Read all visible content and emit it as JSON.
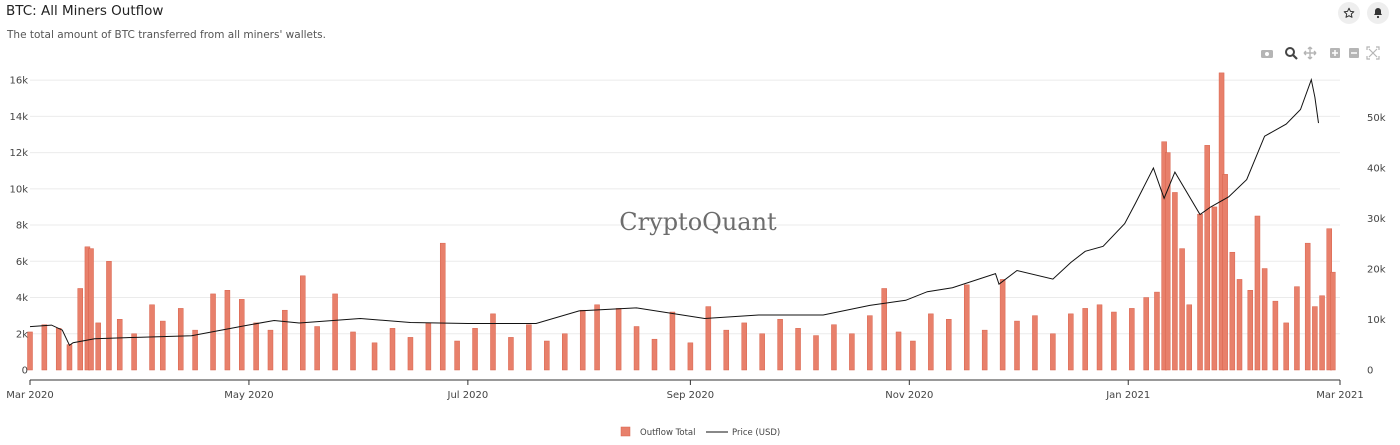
{
  "header": {
    "title": "BTC: All Miners Outflow",
    "subtitle": "The total amount of BTC transferred from all miners' wallets."
  },
  "watermark": "CryptoQuant",
  "toolbar": [
    "camera-icon",
    "zoom-icon",
    "pan-icon",
    "zoom-in-icon",
    "zoom-out-icon",
    "autoscale-icon"
  ],
  "colors": {
    "bar": "#e8806b",
    "bar_stroke": "#d8624c",
    "price_line": "#111111",
    "grid": "#ebebeb"
  },
  "chart_data": {
    "type": "bar",
    "x_range": [
      "2020-03-01",
      "2021-03-01"
    ],
    "x_ticks": [
      {
        "date": "2020-03-01",
        "label": "Mar 2020"
      },
      {
        "date": "2020-05-01",
        "label": "May 2020"
      },
      {
        "date": "2020-07-01",
        "label": "Jul 2020"
      },
      {
        "date": "2020-09-01",
        "label": "Sep 2020"
      },
      {
        "date": "2020-11-01",
        "label": "Nov 2020"
      },
      {
        "date": "2021-01-01",
        "label": "Jan 2021"
      },
      {
        "date": "2021-03-01",
        "label": "Mar 2021"
      }
    ],
    "y_left": {
      "range": [
        0,
        17000
      ],
      "ticks": [
        0,
        2000,
        4000,
        6000,
        8000,
        10000,
        12000,
        14000,
        16000
      ],
      "tick_labels": [
        "0",
        "2k",
        "4k",
        "6k",
        "8k",
        "10k",
        "12k",
        "14k",
        "16k"
      ]
    },
    "y_right": {
      "range": [
        0,
        61000
      ],
      "ticks": [
        0,
        10000,
        20000,
        30000,
        40000,
        50000
      ],
      "tick_labels": [
        "0",
        "10k",
        "20k",
        "30k",
        "40k",
        "50k"
      ]
    },
    "legend": [
      "Outflow Total",
      "Price (USD)"
    ],
    "legend_position": "bottom-center",
    "grid": true,
    "series": [
      {
        "name": "Outflow Total",
        "type": "bar",
        "axis": "left",
        "points": [
          [
            "2020-03-01",
            2100
          ],
          [
            "2020-03-05",
            2500
          ],
          [
            "2020-03-09",
            2300
          ],
          [
            "2020-03-12",
            1400
          ],
          [
            "2020-03-15",
            4500
          ],
          [
            "2020-03-17",
            6800
          ],
          [
            "2020-03-18",
            6700
          ],
          [
            "2020-03-20",
            2600
          ],
          [
            "2020-03-23",
            6000
          ],
          [
            "2020-03-26",
            2800
          ],
          [
            "2020-03-30",
            2000
          ],
          [
            "2020-04-04",
            3600
          ],
          [
            "2020-04-07",
            2700
          ],
          [
            "2020-04-12",
            3400
          ],
          [
            "2020-04-16",
            2200
          ],
          [
            "2020-04-21",
            4200
          ],
          [
            "2020-04-25",
            4400
          ],
          [
            "2020-04-29",
            3900
          ],
          [
            "2020-05-03",
            2600
          ],
          [
            "2020-05-07",
            2200
          ],
          [
            "2020-05-11",
            3300
          ],
          [
            "2020-05-16",
            5200
          ],
          [
            "2020-05-20",
            2400
          ],
          [
            "2020-05-25",
            4200
          ],
          [
            "2020-05-30",
            2100
          ],
          [
            "2020-06-05",
            1500
          ],
          [
            "2020-06-10",
            2300
          ],
          [
            "2020-06-15",
            1800
          ],
          [
            "2020-06-20",
            2600
          ],
          [
            "2020-06-24",
            7000
          ],
          [
            "2020-06-28",
            1600
          ],
          [
            "2020-07-03",
            2300
          ],
          [
            "2020-07-08",
            3100
          ],
          [
            "2020-07-13",
            1800
          ],
          [
            "2020-07-18",
            2500
          ],
          [
            "2020-07-23",
            1600
          ],
          [
            "2020-07-28",
            2000
          ],
          [
            "2020-08-02",
            3300
          ],
          [
            "2020-08-06",
            3600
          ],
          [
            "2020-08-12",
            3400
          ],
          [
            "2020-08-17",
            2400
          ],
          [
            "2020-08-22",
            1700
          ],
          [
            "2020-08-27",
            3200
          ],
          [
            "2020-09-01",
            1500
          ],
          [
            "2020-09-06",
            3500
          ],
          [
            "2020-09-11",
            2200
          ],
          [
            "2020-09-16",
            2600
          ],
          [
            "2020-09-21",
            2000
          ],
          [
            "2020-09-26",
            2800
          ],
          [
            "2020-10-01",
            2300
          ],
          [
            "2020-10-06",
            1900
          ],
          [
            "2020-10-11",
            2500
          ],
          [
            "2020-10-16",
            2000
          ],
          [
            "2020-10-21",
            3000
          ],
          [
            "2020-10-25",
            4500
          ],
          [
            "2020-10-29",
            2100
          ],
          [
            "2020-11-02",
            1600
          ],
          [
            "2020-11-07",
            3100
          ],
          [
            "2020-11-12",
            2800
          ],
          [
            "2020-11-17",
            4700
          ],
          [
            "2020-11-22",
            2200
          ],
          [
            "2020-11-27",
            5000
          ],
          [
            "2020-12-01",
            2700
          ],
          [
            "2020-12-06",
            3000
          ],
          [
            "2020-12-11",
            2000
          ],
          [
            "2020-12-16",
            3100
          ],
          [
            "2020-12-20",
            3400
          ],
          [
            "2020-12-24",
            3600
          ],
          [
            "2020-12-28",
            3200
          ],
          [
            "2021-01-02",
            3400
          ],
          [
            "2021-01-06",
            4000
          ],
          [
            "2021-01-09",
            4300
          ],
          [
            "2021-01-11",
            12600
          ],
          [
            "2021-01-12",
            12000
          ],
          [
            "2021-01-14",
            9800
          ],
          [
            "2021-01-16",
            6700
          ],
          [
            "2021-01-18",
            3600
          ],
          [
            "2021-01-21",
            8600
          ],
          [
            "2021-01-23",
            12400
          ],
          [
            "2021-01-25",
            9000
          ],
          [
            "2021-01-27",
            16400
          ],
          [
            "2021-01-28",
            10800
          ],
          [
            "2021-01-30",
            6500
          ],
          [
            "2021-02-01",
            5000
          ],
          [
            "2021-02-04",
            4400
          ],
          [
            "2021-02-06",
            8500
          ],
          [
            "2021-02-08",
            5600
          ],
          [
            "2021-02-11",
            3800
          ],
          [
            "2021-02-14",
            2600
          ],
          [
            "2021-02-17",
            4600
          ],
          [
            "2021-02-20",
            7000
          ],
          [
            "2021-02-22",
            3500
          ],
          [
            "2021-02-24",
            4100
          ],
          [
            "2021-02-26",
            7800
          ],
          [
            "2021-02-27",
            5400
          ]
        ]
      },
      {
        "name": "Price (USD)",
        "type": "line",
        "axis": "right",
        "points": [
          [
            "2020-03-01",
            8600
          ],
          [
            "2020-03-07",
            8900
          ],
          [
            "2020-03-10",
            7900
          ],
          [
            "2020-03-12",
            4900
          ],
          [
            "2020-03-13",
            5400
          ],
          [
            "2020-03-19",
            6200
          ],
          [
            "2020-04-01",
            6500
          ],
          [
            "2020-04-15",
            6800
          ],
          [
            "2020-04-30",
            8800
          ],
          [
            "2020-05-08",
            9800
          ],
          [
            "2020-05-15",
            9300
          ],
          [
            "2020-06-01",
            10200
          ],
          [
            "2020-06-15",
            9400
          ],
          [
            "2020-07-01",
            9200
          ],
          [
            "2020-07-20",
            9200
          ],
          [
            "2020-08-01",
            11700
          ],
          [
            "2020-08-17",
            12300
          ],
          [
            "2020-09-05",
            10200
          ],
          [
            "2020-09-20",
            10900
          ],
          [
            "2020-10-08",
            10900
          ],
          [
            "2020-10-21",
            12800
          ],
          [
            "2020-10-31",
            13800
          ],
          [
            "2020-11-06",
            15500
          ],
          [
            "2020-11-13",
            16300
          ],
          [
            "2020-11-25",
            19100
          ],
          [
            "2020-11-26",
            17000
          ],
          [
            "2020-12-01",
            19700
          ],
          [
            "2020-12-11",
            18000
          ],
          [
            "2020-12-16",
            21300
          ],
          [
            "2020-12-20",
            23500
          ],
          [
            "2020-12-25",
            24500
          ],
          [
            "2020-12-31",
            29000
          ],
          [
            "2021-01-03",
            33000
          ],
          [
            "2021-01-08",
            40000
          ],
          [
            "2021-01-11",
            34000
          ],
          [
            "2021-01-14",
            39200
          ],
          [
            "2021-01-21",
            30800
          ],
          [
            "2021-01-24",
            32300
          ],
          [
            "2021-01-29",
            34300
          ],
          [
            "2021-02-03",
            37700
          ],
          [
            "2021-02-08",
            46300
          ],
          [
            "2021-02-14",
            48700
          ],
          [
            "2021-02-18",
            51600
          ],
          [
            "2021-02-21",
            57500
          ],
          [
            "2021-02-22",
            54000
          ],
          [
            "2021-02-23",
            48900
          ]
        ]
      }
    ]
  }
}
